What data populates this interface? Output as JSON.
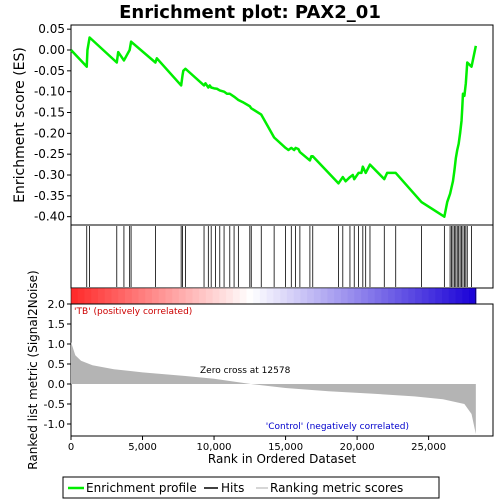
{
  "chart_data": {
    "type": "line",
    "title": "Enrichment plot: PAX2_01",
    "es_panel": {
      "ylabel": "Enrichment score (ES)",
      "ylim": [
        -0.42,
        0.06
      ],
      "yticks": [
        0.05,
        0.0,
        -0.05,
        -0.1,
        -0.15,
        -0.2,
        -0.25,
        -0.3,
        -0.35,
        -0.4
      ],
      "ytick_labels": [
        "0.05",
        "0.00",
        "-0.05",
        "-0.10",
        "-0.15",
        "-0.20",
        "-0.25",
        "-0.30",
        "-0.35",
        "-0.40"
      ],
      "series": [
        {
          "name": "Enrichment profile",
          "color": "#00ee00",
          "x": [
            0,
            1100,
            1150,
            1300,
            3200,
            3300,
            3700,
            4100,
            4200,
            5900,
            6000,
            7700,
            7800,
            7850,
            8000,
            9300,
            9400,
            9600,
            9700,
            9800,
            10000,
            10200,
            10400,
            10700,
            10900,
            11100,
            11400,
            11700,
            12000,
            12500,
            12600,
            12700,
            13300,
            14200,
            15000,
            15200,
            15400,
            15600,
            15700,
            15900,
            16000,
            16700,
            16800,
            16900,
            18700,
            19000,
            19200,
            19500,
            19700,
            19800,
            20100,
            20300,
            20400,
            20600,
            20900,
            21900,
            22100,
            22700,
            24500,
            26100,
            26300,
            26500,
            26600,
            26700,
            26800,
            26900,
            27000,
            27100,
            27200,
            27300,
            27350,
            27400,
            27500,
            27600,
            27700,
            28000,
            28300
          ],
          "y": [
            0.0,
            -0.04,
            0.0,
            0.03,
            -0.03,
            -0.005,
            -0.025,
            0.0,
            0.02,
            -0.03,
            -0.02,
            -0.085,
            -0.06,
            -0.05,
            -0.045,
            -0.085,
            -0.08,
            -0.09,
            -0.085,
            -0.09,
            -0.092,
            -0.093,
            -0.097,
            -0.1,
            -0.105,
            -0.105,
            -0.112,
            -0.12,
            -0.125,
            -0.135,
            -0.14,
            -0.142,
            -0.155,
            -0.21,
            -0.235,
            -0.24,
            -0.235,
            -0.24,
            -0.235,
            -0.238,
            -0.245,
            -0.265,
            -0.255,
            -0.255,
            -0.32,
            -0.305,
            -0.315,
            -0.305,
            -0.3,
            -0.31,
            -0.295,
            -0.295,
            -0.28,
            -0.295,
            -0.275,
            -0.31,
            -0.295,
            -0.295,
            -0.365,
            -0.4,
            -0.365,
            -0.345,
            -0.33,
            -0.315,
            -0.29,
            -0.26,
            -0.24,
            -0.225,
            -0.2,
            -0.17,
            -0.14,
            -0.105,
            -0.11,
            -0.08,
            -0.03,
            -0.04,
            0.01
          ]
        }
      ]
    },
    "hits_panel": {
      "hit_positions": [
        1100,
        1300,
        3200,
        3700,
        4100,
        4200,
        5900,
        7700,
        7800,
        8000,
        9300,
        9600,
        9800,
        10100,
        10400,
        10700,
        11100,
        11400,
        11700,
        12500,
        12600,
        13300,
        14200,
        15000,
        15400,
        15700,
        16000,
        16700,
        16900,
        18700,
        19000,
        19500,
        19800,
        20100,
        20400,
        20600,
        20900,
        21900,
        22700,
        24500,
        26100,
        26500,
        26600,
        26700,
        26800,
        26900,
        27000,
        27100,
        27200,
        27300,
        27400,
        27500,
        27600,
        27700,
        28000
      ]
    },
    "metric_panel": {
      "ylabel": "Ranked list metric (Signal2Noise)",
      "ylim": [
        -1.3,
        2.0
      ],
      "yticks": [
        2.0,
        1.5,
        1.0,
        0.5,
        0.0,
        -0.5,
        -1.0
      ],
      "ytick_labels": [
        "2.0",
        "1.5",
        "1.0",
        "0.5",
        "0.0",
        "-0.5",
        "-1.0"
      ],
      "curve_x": [
        0,
        300,
        700,
        1500,
        3000,
        5000,
        8000,
        10000,
        12578,
        15000,
        18000,
        21000,
        24000,
        26000,
        27500,
        28000,
        28300
      ],
      "curve_y": [
        1.05,
        0.72,
        0.58,
        0.47,
        0.37,
        0.29,
        0.2,
        0.13,
        0.0,
        -0.1,
        -0.18,
        -0.24,
        -0.31,
        -0.38,
        -0.5,
        -0.75,
        -1.25
      ],
      "zero_cross_label": "Zero cross at 12578",
      "zero_cross": 12578,
      "positive_label": "'TB' (positively correlated)",
      "negative_label": "'Control' (negatively correlated)",
      "positive_label_color": "#cc0000",
      "negative_label_color": "#0000cc"
    },
    "xlabel": "Rank in Ordered Dataset",
    "xlim": [
      0,
      29500
    ],
    "xticks": [
      0,
      5000,
      10000,
      15000,
      20000,
      25000
    ],
    "xtick_labels": [
      "0",
      "5,000",
      "10,000",
      "15,000",
      "20,000",
      "25,000"
    ],
    "n_genes": 28300,
    "legend": {
      "placement": "bottom",
      "entries": [
        {
          "label": "Enrichment profile",
          "color": "#00ee00"
        },
        {
          "label": "Hits",
          "color": "#000000"
        },
        {
          "label": "Ranking metric scores",
          "color": "#c8c8c8"
        }
      ]
    }
  }
}
